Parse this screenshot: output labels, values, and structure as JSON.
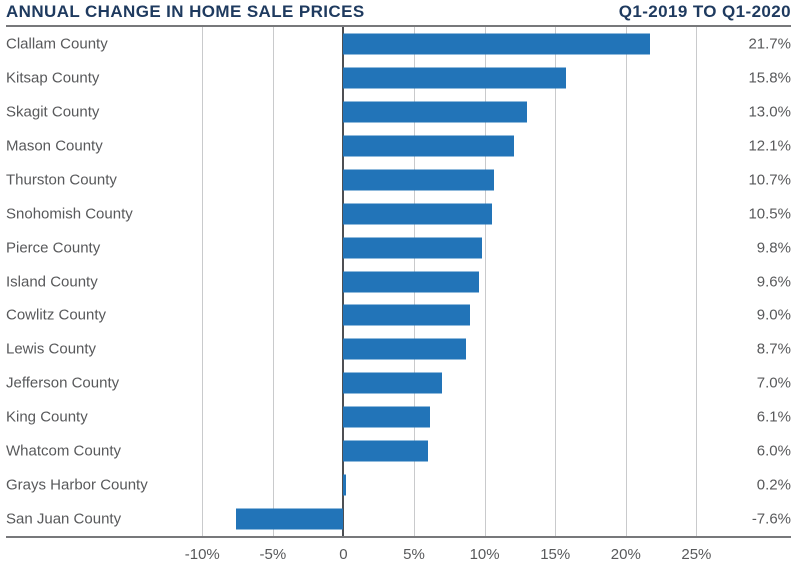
{
  "header": {
    "title": "ANNUAL CHANGE IN HOME SALE PRICES",
    "subtitle": "Q1-2019 TO Q1-2020"
  },
  "chart_data": {
    "type": "bar",
    "orientation": "horizontal",
    "title": "ANNUAL CHANGE IN HOME SALE PRICES",
    "subtitle": "Q1-2019 TO Q1-2020",
    "categories": [
      "Clallam County",
      "Kitsap County",
      "Skagit County",
      "Mason County",
      "Thurston County",
      "Snohomish County",
      "Pierce County",
      "Island County",
      "Cowlitz County",
      "Lewis County",
      "Jefferson County",
      "King County",
      "Whatcom County",
      "Grays Harbor County",
      "San Juan County"
    ],
    "values": [
      21.7,
      15.8,
      13.0,
      12.1,
      10.7,
      10.5,
      9.8,
      9.6,
      9.0,
      8.7,
      7.0,
      6.1,
      6.0,
      0.2,
      -7.6
    ],
    "value_labels": [
      "21.7%",
      "15.8%",
      "13.0%",
      "12.1%",
      "10.7%",
      "10.5%",
      "9.8%",
      "9.6%",
      "9.0%",
      "8.7%",
      "7.0%",
      "6.1%",
      "6.0%",
      "0.2%",
      "-7.6%"
    ],
    "xlabel": "",
    "ylabel": "",
    "xlim": [
      -23.9,
      31.7
    ],
    "x_ticks": [
      {
        "value": -10,
        "label": "-10%"
      },
      {
        "value": -5,
        "label": "-5%"
      },
      {
        "value": 0,
        "label": "0"
      },
      {
        "value": 5,
        "label": "5%"
      },
      {
        "value": 10,
        "label": "10%"
      },
      {
        "value": 15,
        "label": "15%"
      },
      {
        "value": 20,
        "label": "20%"
      },
      {
        "value": 25,
        "label": "25%"
      }
    ],
    "grid": "vertical",
    "zero_line": true,
    "legend": "none"
  },
  "colors": {
    "background": "#ffffff",
    "title": "#1e3a5f",
    "bar": "#2274b8",
    "label": "#58595b",
    "tick": "#58595b",
    "grid": "#c9cacc",
    "zero_line": "#4d4f53",
    "axis_line": "#77787b"
  }
}
